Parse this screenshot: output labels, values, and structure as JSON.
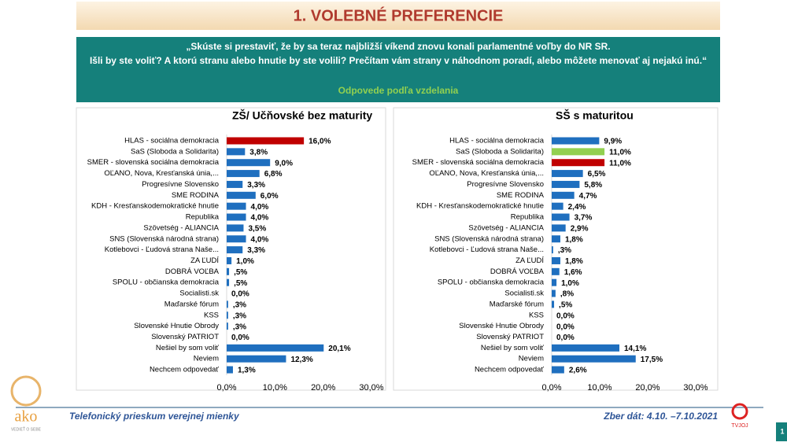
{
  "slide": {
    "title": "1. VOLEBNÉ PREFERENCIE",
    "question": [
      "„Skúste si prestaviť, že by sa teraz najbližší víkend znovu konali parlamentné voľby do NR SR.",
      "Išli by ste voliť? A ktorú stranu alebo hnutie by ste volili? Prečítam vám strany v náhodnom poradí, alebo môžete menovať aj nejakú inú.“"
    ],
    "subtitle": "Odpovede podľa vzdelania",
    "footer_left": "Telefonický prieskum verejnej mienky",
    "footer_right": "Zber dát: 4.10. –7.10.2021",
    "logo": "ako",
    "logo_tagline": "VEDIEŤ O SEBE",
    "partner": "TVJOJ",
    "page": "1"
  },
  "chart_data": [
    {
      "type": "bar",
      "orientation": "horizontal",
      "title": "ZŠ/ Učňovské bez maturity",
      "categories": [
        "HLAS - sociálna demokracia",
        "SaS (Sloboda a Solidarita)",
        "SMER - slovenská sociálna demokracia",
        "OĽANO, Nova, Kresťanská únia,...",
        "Progresívne Slovensko",
        "SME RODINA",
        "KDH - Kresťanskodemokratické hnutie",
        "Republika",
        "Szövetség - ALIANCIA",
        "SNS (Slovenská národná strana)",
        "Kotlebovci - Ľudová strana Naše...",
        "ZA ĽUDÍ",
        "DOBRÁ VOĽBA",
        "SPOLU - občianska demokracia",
        "Socialisti.sk",
        "Maďarské fórum",
        "KSS",
        "Slovenské Hnutie Obrody",
        "Slovenský PATRIOT",
        "Nešiel by som voliť",
        "Neviem",
        "Nechcem odpovedať"
      ],
      "values": [
        16.0,
        3.8,
        9.0,
        6.8,
        3.3,
        6.0,
        4.0,
        4.0,
        3.5,
        4.0,
        3.3,
        1.0,
        0.5,
        0.5,
        0.0,
        0.3,
        0.3,
        0.3,
        0.0,
        20.1,
        12.3,
        1.3
      ],
      "value_labels": [
        "16,0%",
        "3,8%",
        "9,0%",
        "6,8%",
        "3,3%",
        "6,0%",
        "4,0%",
        "4,0%",
        "3,5%",
        "4,0%",
        "3,3%",
        "1,0%",
        ",5%",
        ",5%",
        "0,0%",
        ",3%",
        ",3%",
        ",3%",
        "0,0%",
        "20,1%",
        "12,3%",
        "1,3%"
      ],
      "colors": [
        "#c00000",
        "#1f6fbf",
        "#1f6fbf",
        "#1f6fbf",
        "#1f6fbf",
        "#1f6fbf",
        "#1f6fbf",
        "#1f6fbf",
        "#1f6fbf",
        "#1f6fbf",
        "#1f6fbf",
        "#1f6fbf",
        "#1f6fbf",
        "#1f6fbf",
        "#1f6fbf",
        "#1f6fbf",
        "#1f6fbf",
        "#1f6fbf",
        "#1f6fbf",
        "#1f6fbf",
        "#1f6fbf",
        "#1f6fbf"
      ],
      "xlim": [
        0,
        30
      ],
      "xticks": [
        {
          "value": 0,
          "label": "0,0%"
        },
        {
          "value": 10,
          "label": "10,0%"
        },
        {
          "value": 20,
          "label": "20,0%"
        },
        {
          "value": 30,
          "label": "30,0%"
        }
      ]
    },
    {
      "type": "bar",
      "orientation": "horizontal",
      "title": "SŠ s maturitou",
      "categories": [
        "HLAS - sociálna demokracia",
        "SaS (Sloboda a Solidarita)",
        "SMER - slovenská sociálna demokracia",
        "OĽANO, Nova, Kresťanská únia,...",
        "Progresívne Slovensko",
        "SME RODINA",
        "KDH - Kresťanskodemokratické hnutie",
        "Republika",
        "Szövetség - ALIANCIA",
        "SNS (Slovenská národná strana)",
        "Kotlebovci - Ľudová strana Naše...",
        "ZA ĽUDÍ",
        "DOBRÁ VOĽBA",
        "SPOLU - občianska demokracia",
        "Socialisti.sk",
        "Maďarské fórum",
        "KSS",
        "Slovenské Hnutie Obrody",
        "Slovenský PATRIOT",
        "Nešiel by som voliť",
        "Neviem",
        "Nechcem odpovedať"
      ],
      "values": [
        9.9,
        11.0,
        11.0,
        6.5,
        5.8,
        4.7,
        2.4,
        3.7,
        2.9,
        1.8,
        0.3,
        1.8,
        1.6,
        1.0,
        0.8,
        0.5,
        0.0,
        0.0,
        0.0,
        14.1,
        17.5,
        2.6
      ],
      "value_labels": [
        "9,9%",
        "11,0%",
        "11,0%",
        "6,5%",
        "5,8%",
        "4,7%",
        "2,4%",
        "3,7%",
        "2,9%",
        "1,8%",
        ",3%",
        "1,8%",
        "1,6%",
        "1,0%",
        ",8%",
        ",5%",
        "0,0%",
        "0,0%",
        "0,0%",
        "14,1%",
        "17,5%",
        "2,6%"
      ],
      "colors": [
        "#1f6fbf",
        "#92d050",
        "#c00000",
        "#1f6fbf",
        "#1f6fbf",
        "#1f6fbf",
        "#1f6fbf",
        "#1f6fbf",
        "#1f6fbf",
        "#1f6fbf",
        "#1f6fbf",
        "#1f6fbf",
        "#1f6fbf",
        "#1f6fbf",
        "#1f6fbf",
        "#1f6fbf",
        "#1f6fbf",
        "#1f6fbf",
        "#1f6fbf",
        "#1f6fbf",
        "#1f6fbf",
        "#1f6fbf"
      ],
      "xlim": [
        0,
        30
      ],
      "xticks": [
        {
          "value": 0,
          "label": "0,0%"
        },
        {
          "value": 10,
          "label": "10,0%"
        },
        {
          "value": 20,
          "label": "20,0%"
        },
        {
          "value": 30,
          "label": "30,0%"
        }
      ]
    }
  ]
}
